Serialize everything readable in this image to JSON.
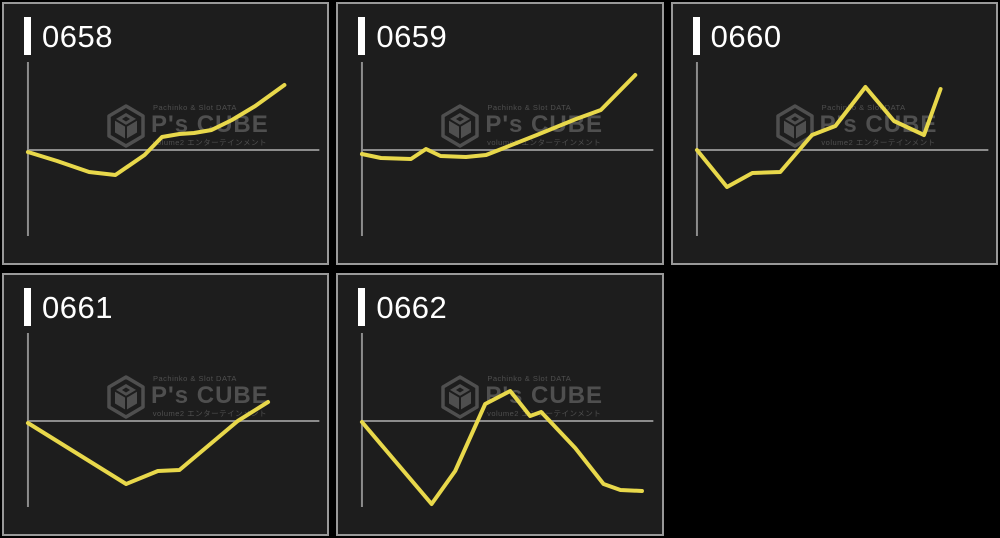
{
  "page": {
    "background": "#000000",
    "description_title_labels": [
      "0658",
      "0659",
      "0660",
      "0661",
      "0662"
    ]
  },
  "colors": {
    "line": "#e8d84b",
    "axis": "#8c8c8c",
    "panel_bg": "#1d1d1d",
    "panel_border": "#999999",
    "title_text": "#ffffff",
    "watermark": "#4f4f4f"
  },
  "watermark": {
    "top": "Pachinko & Slot DATA",
    "main": "P's CUBE",
    "sub": "volume2 エンターテインメント"
  },
  "chart_data": [
    {
      "type": "line",
      "title": "0658",
      "xlabel": "",
      "ylabel": "",
      "legend": "none",
      "grid": "zero-baseline-only",
      "x_range": [
        0,
        1
      ],
      "ylim": [
        -90,
        90
      ],
      "y_units": "relative payout (unlabeled, zero baseline shown)",
      "points": [
        [
          0,
          -2
        ],
        [
          0.1,
          -11
        ],
        [
          0.21,
          -22
        ],
        [
          0.3,
          -25
        ],
        [
          0.4,
          -5
        ],
        [
          0.46,
          13
        ],
        [
          0.52,
          16
        ],
        [
          0.57,
          17
        ],
        [
          0.63,
          20
        ],
        [
          0.7,
          30
        ],
        [
          0.78,
          44
        ],
        [
          0.88,
          65
        ]
      ]
    },
    {
      "type": "line",
      "title": "0659",
      "xlabel": "",
      "ylabel": "",
      "legend": "none",
      "grid": "zero-baseline-only",
      "x_range": [
        0,
        1
      ],
      "ylim": [
        -90,
        90
      ],
      "y_units": "relative payout (unlabeled, zero baseline shown)",
      "points": [
        [
          0,
          -4
        ],
        [
          0.065,
          -8
        ],
        [
          0.168,
          -9
        ],
        [
          0.22,
          1
        ],
        [
          0.27,
          -6
        ],
        [
          0.357,
          -7
        ],
        [
          0.426,
          -5
        ],
        [
          0.47,
          0
        ],
        [
          0.6,
          15
        ],
        [
          0.735,
          31
        ],
        [
          0.82,
          40
        ],
        [
          0.938,
          75
        ]
      ]
    },
    {
      "type": "line",
      "title": "0660",
      "xlabel": "",
      "ylabel": "",
      "legend": "none",
      "grid": "zero-baseline-only",
      "x_range": [
        0,
        1
      ],
      "ylim": [
        -90,
        90
      ],
      "y_units": "relative payout (unlabeled, zero baseline shown)",
      "points": [
        [
          0,
          0
        ],
        [
          0.103,
          -37
        ],
        [
          0.19,
          -23
        ],
        [
          0.286,
          -22
        ],
        [
          0.395,
          15
        ],
        [
          0.475,
          24
        ],
        [
          0.578,
          63
        ],
        [
          0.676,
          29
        ],
        [
          0.779,
          15
        ],
        [
          0.836,
          61
        ]
      ]
    },
    {
      "type": "line",
      "title": "0661",
      "xlabel": "",
      "ylabel": "",
      "legend": "none",
      "grid": "zero-baseline-only",
      "x_range": [
        0,
        1
      ],
      "ylim": [
        -90,
        90
      ],
      "y_units": "relative payout (unlabeled, zero baseline shown)",
      "points": [
        [
          0,
          -2
        ],
        [
          0.337,
          -63
        ],
        [
          0.446,
          -50
        ],
        [
          0.52,
          -49
        ],
        [
          0.72,
          0
        ],
        [
          0.824,
          19
        ]
      ]
    },
    {
      "type": "line",
      "title": "0662",
      "xlabel": "",
      "ylabel": "",
      "legend": "none",
      "grid": "zero-baseline-only",
      "x_range": [
        0,
        1
      ],
      "ylim": [
        -90,
        90
      ],
      "y_units": "relative payout (unlabeled, zero baseline shown)",
      "points": [
        [
          0,
          -1
        ],
        [
          0.239,
          -83
        ],
        [
          0.32,
          -50
        ],
        [
          0.423,
          17
        ],
        [
          0.509,
          30
        ],
        [
          0.577,
          5
        ],
        [
          0.615,
          9
        ],
        [
          0.732,
          -27
        ],
        [
          0.829,
          -63
        ],
        [
          0.887,
          -69
        ],
        [
          0.961,
          -70
        ]
      ]
    }
  ]
}
